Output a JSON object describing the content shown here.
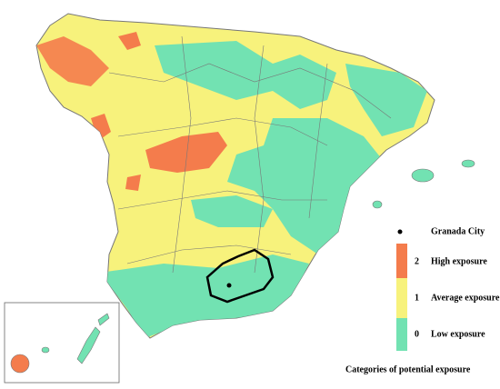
{
  "legend": {
    "point_label": "Granada City",
    "categories": [
      {
        "value": "2",
        "label": "High exposure",
        "color": "#f47c4c"
      },
      {
        "value": "1",
        "label": "Average exposure",
        "color": "#f7f27c"
      },
      {
        "value": "0",
        "label": "Low exposure",
        "color": "#72e2b2"
      }
    ],
    "caption": "Categories of potential  exposure"
  }
}
